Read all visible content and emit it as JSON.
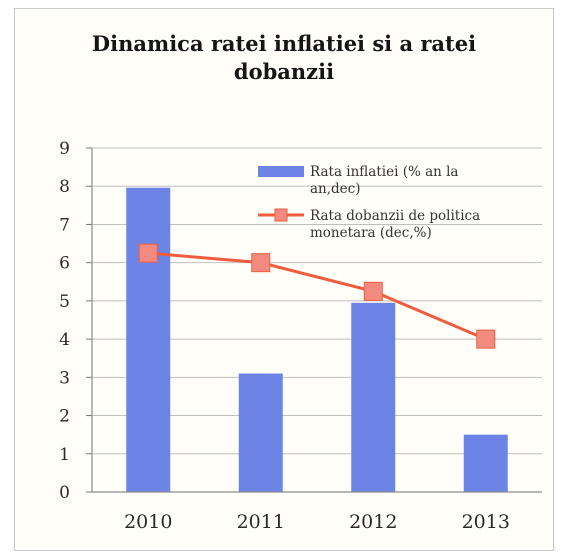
{
  "chart_data": {
    "type": "bar",
    "title": "Dinamica ratei inflatiei si a ratei dobanzii",
    "categories": [
      "2010",
      "2011",
      "2012",
      "2013"
    ],
    "series": [
      {
        "name": "Rata inflatiei (% an la an,dec)",
        "type": "bar",
        "color": "#6b84e6",
        "values": [
          7.96,
          3.1,
          4.95,
          1.5
        ]
      },
      {
        "name": "Rata dobanzii de politica monetara (dec,%)",
        "type": "line",
        "color": "#ef5c3e",
        "marker_color": "#f28a80",
        "values": [
          6.25,
          6.0,
          5.25,
          4.0
        ]
      }
    ],
    "yticks": [
      "0",
      "1",
      "2",
      "3",
      "4",
      "5",
      "6",
      "7",
      "8",
      "9"
    ],
    "ylim": [
      0,
      9
    ],
    "grid": true,
    "legend_position": "top-right"
  }
}
